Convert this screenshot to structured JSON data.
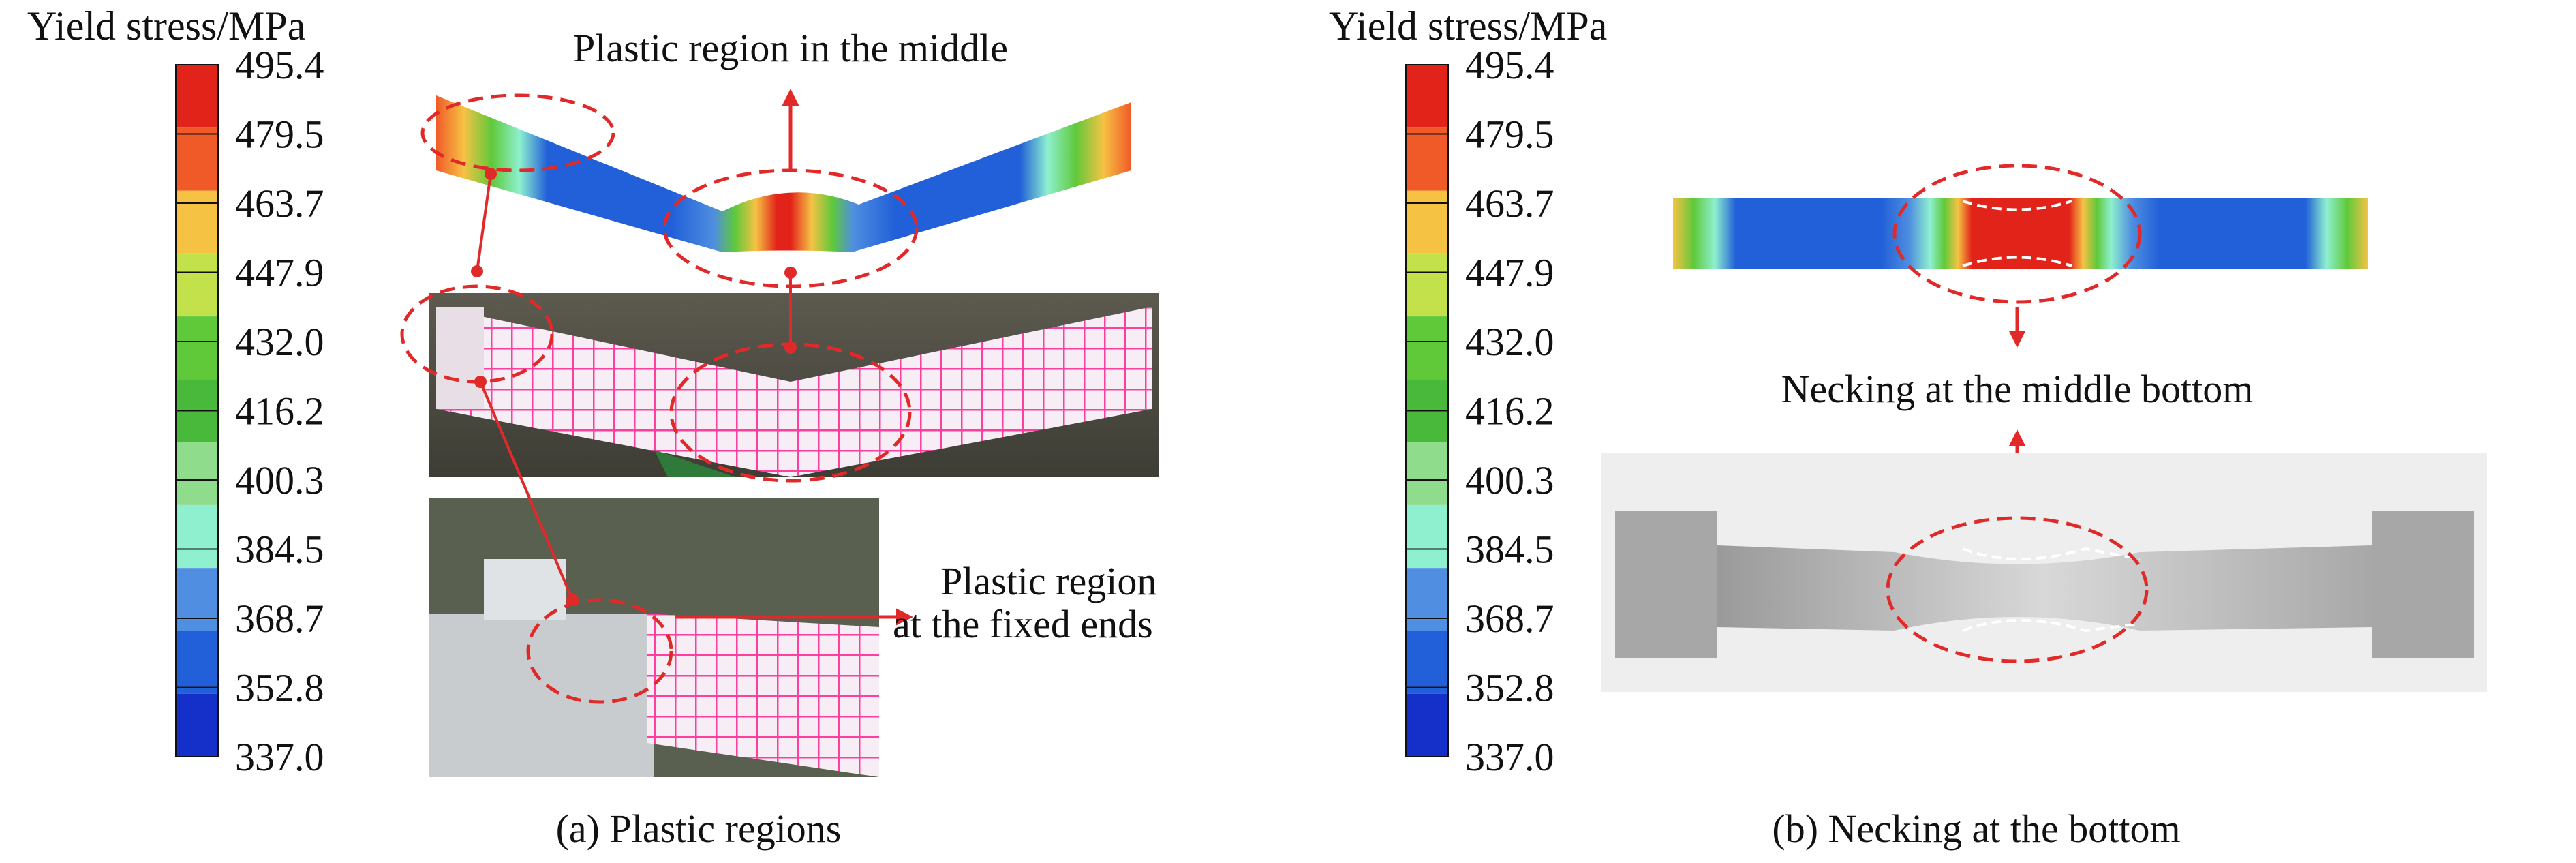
{
  "colors": {
    "legend_bands": [
      "#e2231a",
      "#f05a28",
      "#f6c244",
      "#c2e14a",
      "#5fc93a",
      "#48b93a",
      "#8fdc8c",
      "#8ef0cf",
      "#4f8ee0",
      "#2160d8",
      "#1530c8"
    ],
    "annotation": "#e02a2a",
    "grid_line": "#ff3fa0"
  },
  "panel_a": {
    "legend_title": "Yield stress/MPa",
    "legend_ticks": [
      "495.4",
      "479.5",
      "463.7",
      "447.9",
      "432.0",
      "416.2",
      "400.3",
      "384.5",
      "368.7",
      "352.8",
      "337.0"
    ],
    "label_middle": "Plastic region in the middle",
    "label_ends_line1": "Plastic region",
    "label_ends_line2": "at the fixed ends",
    "caption": "(a) Plastic regions"
  },
  "panel_b": {
    "legend_title": "Yield stress/MPa",
    "legend_ticks": [
      "495.4",
      "479.5",
      "463.7",
      "447.9",
      "432.0",
      "416.2",
      "400.3",
      "384.5",
      "368.7",
      "352.8",
      "337.0"
    ],
    "label_necking": "Necking at the middle bottom",
    "caption": "(b) Necking at the bottom"
  }
}
